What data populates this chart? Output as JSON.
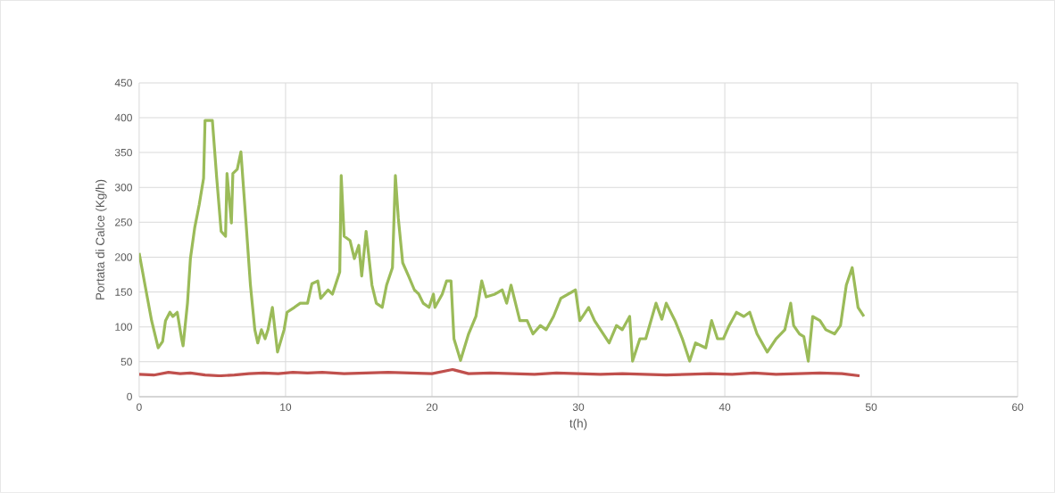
{
  "chart_data": {
    "type": "line",
    "xlabel": "t(h)",
    "ylabel": "Portata di Calce (Kg/h)",
    "xlim": [
      0,
      60
    ],
    "ylim": [
      0,
      450
    ],
    "xticks": [
      0,
      10,
      20,
      30,
      40,
      50,
      60
    ],
    "yticks": [
      0,
      50,
      100,
      150,
      200,
      250,
      300,
      350,
      400,
      450
    ],
    "grid": true,
    "marker": "none",
    "line_style": "solid",
    "series": [
      {
        "color": "#9bbb59",
        "x": [
          0,
          0.4,
          0.85,
          1.3,
          1.6,
          1.8,
          2.1,
          2.3,
          2.6,
          2.9,
          3.0,
          3.3,
          3.5,
          3.8,
          4.1,
          4.4,
          4.5,
          5.0,
          5.3,
          5.6,
          5.9,
          6.0,
          6.3,
          6.4,
          6.7,
          6.95,
          7.3,
          7.6,
          7.9,
          8.1,
          8.35,
          8.6,
          8.8,
          9.1,
          9.45,
          9.9,
          10.1,
          10.6,
          11.0,
          11.5,
          11.8,
          12.2,
          12.4,
          12.9,
          13.2,
          13.7,
          13.8,
          14.0,
          14.4,
          14.7,
          15.0,
          15.2,
          15.5,
          15.9,
          16.2,
          16.6,
          16.9,
          17.3,
          17.5,
          17.7,
          18.0,
          18.4,
          18.8,
          19.1,
          19.4,
          19.8,
          20.1,
          20.2,
          20.7,
          21.0,
          21.3,
          21.5,
          21.95,
          22.5,
          23.0,
          23.4,
          23.7,
          24.3,
          24.8,
          25.1,
          25.4,
          26.0,
          26.5,
          26.9,
          27.4,
          27.8,
          28.3,
          28.8,
          29.8,
          30.1,
          30.7,
          31.1,
          32.1,
          32.6,
          33.0,
          33.5,
          33.7,
          34.2,
          34.6,
          35.3,
          35.7,
          36.0,
          36.6,
          37.1,
          37.6,
          38.0,
          38.7,
          39.1,
          39.5,
          39.9,
          40.3,
          40.8,
          41.3,
          41.7,
          42.2,
          42.9,
          43.5,
          44.1,
          44.5,
          44.7,
          45.1,
          45.4,
          45.7,
          46.0,
          46.5,
          46.9,
          47.5,
          47.9,
          48.3,
          48.7,
          49.1,
          49.5
        ],
        "values": [
          206,
          160,
          109,
          70,
          79,
          109,
          121,
          115,
          121,
          83,
          73,
          134,
          198,
          243,
          275,
          313,
          396,
          396,
          313,
          237,
          230,
          320,
          249,
          320,
          326,
          351,
          249,
          160,
          96,
          77,
          96,
          83,
          96,
          128,
          64,
          96,
          121,
          128,
          134,
          134,
          162,
          166,
          141,
          153,
          147,
          179,
          317,
          230,
          224,
          198,
          217,
          173,
          237,
          160,
          134,
          128,
          160,
          185,
          317,
          256,
          192,
          173,
          153,
          147,
          134,
          128,
          147,
          128,
          147,
          166,
          166,
          83,
          52,
          90,
          115,
          166,
          143,
          147,
          153,
          134,
          160,
          109,
          109,
          90,
          102,
          96,
          115,
          141,
          153,
          109,
          128,
          109,
          77,
          102,
          96,
          115,
          51,
          83,
          83,
          134,
          111,
          134,
          109,
          83,
          51,
          77,
          70,
          109,
          83,
          83,
          102,
          121,
          115,
          121,
          90,
          64,
          83,
          96,
          134,
          102,
          90,
          86,
          51,
          115,
          109,
          96,
          90,
          102,
          160,
          185,
          128,
          115
        ]
      },
      {
        "color": "#c0504d",
        "x": [
          0,
          1,
          2,
          2.8,
          3.5,
          4.5,
          5.5,
          6.5,
          7.5,
          8.5,
          9.5,
          10.5,
          11.5,
          12.5,
          14,
          15.5,
          17,
          18.5,
          20,
          21.4,
          22.5,
          24,
          25.5,
          27,
          28.5,
          30,
          31.5,
          33,
          34.5,
          36,
          37.5,
          39,
          40.5,
          42,
          43.5,
          45,
          46.5,
          48,
          49.2
        ],
        "values": [
          32,
          31,
          35,
          33,
          34,
          31,
          30,
          31,
          33,
          34,
          33,
          35,
          34,
          35,
          33,
          34,
          35,
          34,
          33,
          39,
          33,
          34,
          33,
          32,
          34,
          33,
          32,
          33,
          32,
          31,
          32,
          33,
          32,
          34,
          32,
          33,
          34,
          33,
          30
        ]
      }
    ]
  }
}
